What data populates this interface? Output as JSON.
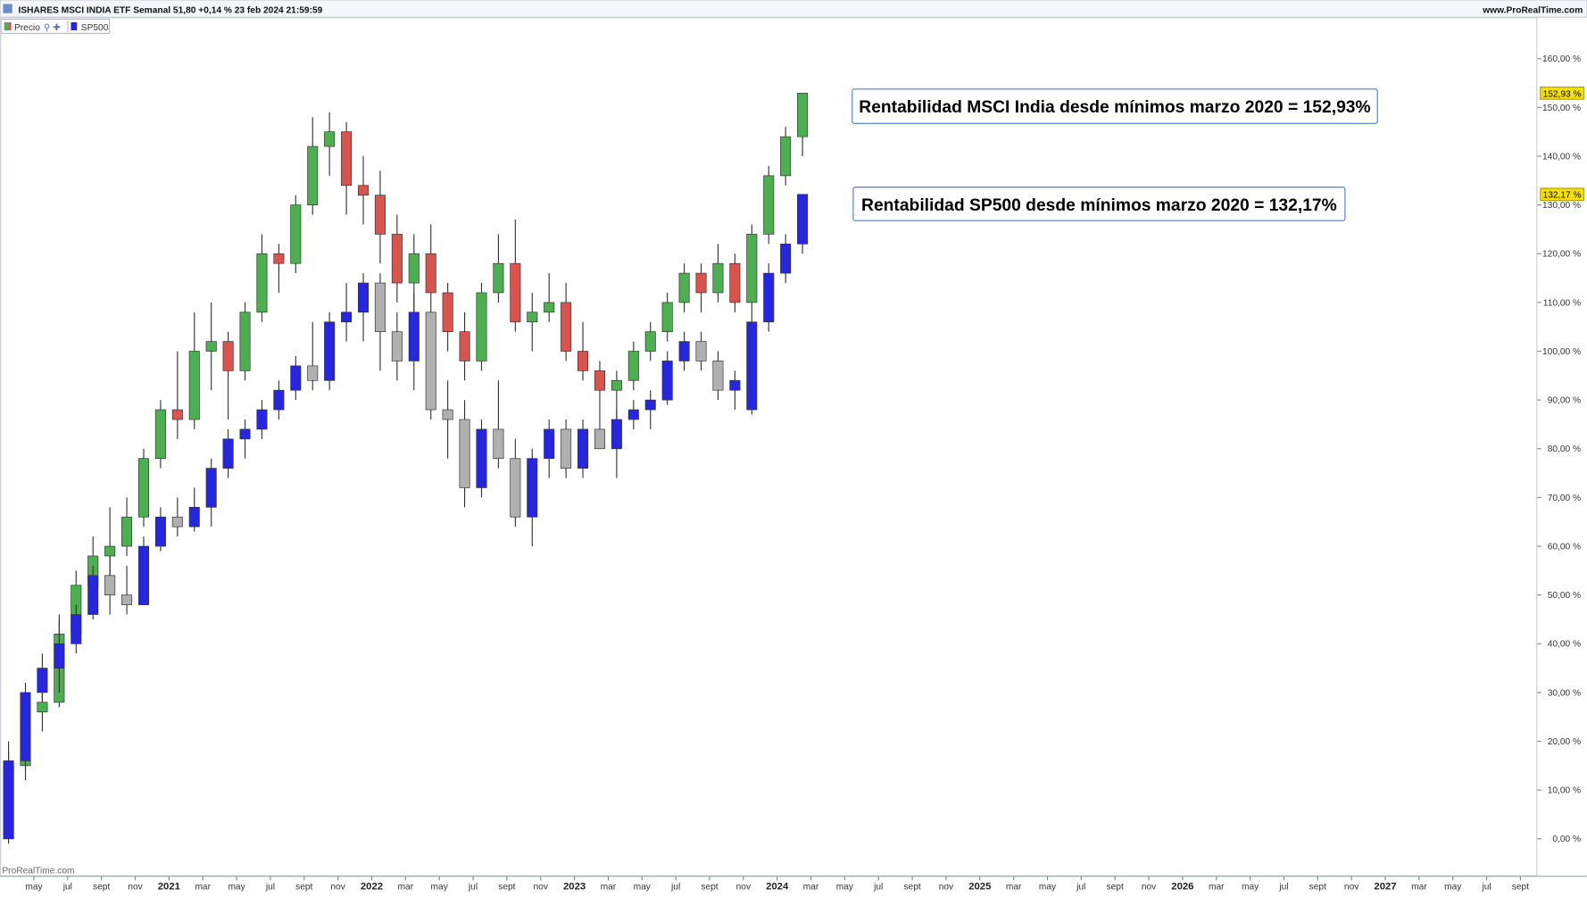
{
  "header": {
    "title": "ISHARES MSCI INDIA ETF Semanal 51,80 +0,14 % 23 feb 2024 21:59:59",
    "site": "www.ProRealTime.com"
  },
  "chart_data": {
    "type": "candlestick",
    "x": [
      "2020-03",
      "2020-04",
      "2020-05",
      "2020-06",
      "2020-07",
      "2020-08",
      "2020-09",
      "2020-10",
      "2020-11",
      "2020-12",
      "2021-01",
      "2021-02",
      "2021-03",
      "2021-04",
      "2021-05",
      "2021-06",
      "2021-07",
      "2021-08",
      "2021-09",
      "2021-10",
      "2021-11",
      "2021-12",
      "2022-01",
      "2022-02",
      "2022-03",
      "2022-04",
      "2022-05",
      "2022-06",
      "2022-07",
      "2022-08",
      "2022-09",
      "2022-10",
      "2022-11",
      "2022-12",
      "2023-01",
      "2023-02",
      "2023-03",
      "2023-04",
      "2023-05",
      "2023-06",
      "2023-07",
      "2023-08",
      "2023-09",
      "2023-10",
      "2023-11",
      "2023-12",
      "2024-01",
      "2024-02"
    ],
    "series": [
      {
        "name": "Precio",
        "up_color": "#4caf50",
        "down_color": "#d9534f",
        "last_label": "152,93 %",
        "open": [
          0,
          15,
          26,
          28,
          42,
          52,
          58,
          60,
          66,
          78,
          88,
          86,
          100,
          102,
          96,
          108,
          120,
          118,
          130,
          142,
          145,
          134,
          132,
          124,
          114,
          120,
          112,
          104,
          98,
          112,
          118,
          106,
          108,
          110,
          100,
          96,
          92,
          94,
          100,
          104,
          110,
          116,
          112,
          118,
          110,
          124,
          136,
          144
        ],
        "high": [
          18,
          30,
          30,
          45,
          55,
          62,
          68,
          70,
          80,
          90,
          100,
          108,
          110,
          104,
          110,
          124,
          122,
          132,
          148,
          149,
          147,
          140,
          137,
          128,
          124,
          126,
          114,
          108,
          114,
          124,
          127,
          112,
          116,
          114,
          106,
          98,
          96,
          102,
          106,
          112,
          118,
          118,
          122,
          120,
          126,
          138,
          146,
          153
        ],
        "low": [
          0,
          12,
          22,
          27,
          40,
          48,
          52,
          58,
          64,
          76,
          82,
          84,
          92,
          86,
          94,
          106,
          112,
          116,
          128,
          136,
          128,
          126,
          118,
          110,
          108,
          110,
          100,
          94,
          96,
          110,
          104,
          100,
          106,
          98,
          94,
          88,
          86,
          92,
          98,
          102,
          108,
          108,
          110,
          108,
          108,
          122,
          134,
          140
        ],
        "close": [
          15,
          26,
          28,
          42,
          52,
          58,
          60,
          66,
          78,
          88,
          86,
          100,
          102,
          96,
          108,
          120,
          118,
          130,
          142,
          145,
          134,
          132,
          124,
          114,
          120,
          112,
          104,
          98,
          112,
          118,
          106,
          108,
          110,
          100,
          96,
          92,
          94,
          100,
          104,
          110,
          116,
          112,
          118,
          110,
          124,
          136,
          144,
          152.93
        ]
      },
      {
        "name": "SP500",
        "up_color": "#2626e0",
        "down_color": "#b0b0b0",
        "last_label": "132,17 %",
        "open": [
          0,
          16,
          30,
          35,
          40,
          46,
          54,
          50,
          48,
          60,
          66,
          64,
          68,
          76,
          82,
          84,
          88,
          92,
          97,
          94,
          106,
          108,
          114,
          104,
          98,
          108,
          88,
          86,
          72,
          84,
          78,
          66,
          78,
          84,
          76,
          84,
          80,
          86,
          88,
          90,
          98,
          102,
          98,
          92,
          88,
          106,
          116,
          122
        ],
        "high": [
          20,
          32,
          38,
          46,
          48,
          56,
          58,
          56,
          62,
          68,
          70,
          72,
          78,
          84,
          86,
          90,
          94,
          99,
          106,
          108,
          114,
          116,
          116,
          108,
          112,
          110,
          94,
          90,
          86,
          94,
          82,
          80,
          86,
          86,
          86,
          88,
          88,
          90,
          92,
          100,
          104,
          104,
          100,
          96,
          108,
          118,
          124,
          132.17
        ],
        "low": [
          -1,
          14,
          28,
          30,
          38,
          45,
          46,
          46,
          48,
          59,
          62,
          63,
          64,
          74,
          78,
          82,
          86,
          90,
          92,
          92,
          102,
          102,
          96,
          94,
          92,
          86,
          78,
          68,
          70,
          76,
          64,
          60,
          74,
          74,
          74,
          80,
          74,
          84,
          84,
          89,
          96,
          96,
          90,
          88,
          87,
          104,
          114,
          120
        ],
        "close": [
          16,
          30,
          35,
          40,
          46,
          54,
          50,
          48,
          60,
          66,
          64,
          68,
          76,
          82,
          84,
          88,
          92,
          97,
          94,
          106,
          108,
          114,
          104,
          98,
          108,
          88,
          86,
          72,
          84,
          78,
          66,
          78,
          84,
          76,
          84,
          80,
          86,
          88,
          90,
          98,
          102,
          98,
          92,
          94,
          106,
          116,
          122,
          132.17
        ]
      }
    ],
    "xlim": [
      "2020-03",
      "2027-10"
    ],
    "xticks": [
      {
        "value": "2020-05",
        "label": "may"
      },
      {
        "value": "2020-07",
        "label": "jul"
      },
      {
        "value": "2020-09",
        "label": "sept"
      },
      {
        "value": "2020-11",
        "label": "nov"
      },
      {
        "value": "2021-01",
        "label": "2021"
      },
      {
        "value": "2021-03",
        "label": "mar"
      },
      {
        "value": "2021-05",
        "label": "may"
      },
      {
        "value": "2021-07",
        "label": "jul"
      },
      {
        "value": "2021-09",
        "label": "sept"
      },
      {
        "value": "2021-11",
        "label": "nov"
      },
      {
        "value": "2022-01",
        "label": "2022"
      },
      {
        "value": "2022-03",
        "label": "mar"
      },
      {
        "value": "2022-05",
        "label": "may"
      },
      {
        "value": "2022-07",
        "label": "jul"
      },
      {
        "value": "2022-09",
        "label": "sept"
      },
      {
        "value": "2022-11",
        "label": "nov"
      },
      {
        "value": "2023-01",
        "label": "2023"
      },
      {
        "value": "2023-03",
        "label": "mar"
      },
      {
        "value": "2023-05",
        "label": "may"
      },
      {
        "value": "2023-07",
        "label": "jul"
      },
      {
        "value": "2023-09",
        "label": "sept"
      },
      {
        "value": "2023-11",
        "label": "nov"
      },
      {
        "value": "2024-01",
        "label": "2024"
      },
      {
        "value": "2024-03",
        "label": "mar"
      },
      {
        "value": "2024-05",
        "label": "may"
      },
      {
        "value": "2024-07",
        "label": "jul"
      },
      {
        "value": "2024-09",
        "label": "sept"
      },
      {
        "value": "2024-11",
        "label": "nov"
      },
      {
        "value": "2025-01",
        "label": "2025"
      },
      {
        "value": "2025-03",
        "label": "mar"
      },
      {
        "value": "2025-05",
        "label": "may"
      },
      {
        "value": "2025-07",
        "label": "jul"
      },
      {
        "value": "2025-09",
        "label": "sept"
      },
      {
        "value": "2025-11",
        "label": "nov"
      },
      {
        "value": "2026-01",
        "label": "2026"
      },
      {
        "value": "2026-03",
        "label": "mar"
      },
      {
        "value": "2026-05",
        "label": "may"
      },
      {
        "value": "2026-07",
        "label": "jul"
      },
      {
        "value": "2026-09",
        "label": "sept"
      },
      {
        "value": "2026-11",
        "label": "nov"
      },
      {
        "value": "2027-01",
        "label": "2027"
      },
      {
        "value": "2027-03",
        "label": "mar"
      },
      {
        "value": "2027-05",
        "label": "may"
      },
      {
        "value": "2027-07",
        "label": "jul"
      },
      {
        "value": "2027-09",
        "label": "sept"
      }
    ],
    "ylim": [
      -7.7,
      168.3
    ],
    "yticks": [
      {
        "value": 0,
        "label": "0,00 %"
      },
      {
        "value": 10,
        "label": "10,00 %"
      },
      {
        "value": 20,
        "label": "20,00 %"
      },
      {
        "value": 30,
        "label": "30,00 %"
      },
      {
        "value": 40,
        "label": "40,00 %"
      },
      {
        "value": 50,
        "label": "50,00 %"
      },
      {
        "value": 60,
        "label": "60,00 %"
      },
      {
        "value": 70,
        "label": "70,00 %"
      },
      {
        "value": 80,
        "label": "80,00 %"
      },
      {
        "value": 90,
        "label": "90,00 %"
      },
      {
        "value": 100,
        "label": "100,00 %"
      },
      {
        "value": 110,
        "label": "110,00 %"
      },
      {
        "value": 120,
        "label": "120,00 %"
      },
      {
        "value": 130,
        "label": "130,00 %"
      },
      {
        "value": 140,
        "label": "140,00 %"
      },
      {
        "value": 150,
        "label": "150,00 %"
      },
      {
        "value": 160,
        "label": "160,00 %"
      }
    ],
    "annotations": [
      "Rentabilidad MSCI India desde mínimos marzo 2020 = 152,93%",
      "Rentabilidad SP500 desde mínimos marzo 2020 = 132,17%"
    ],
    "watermark": "ProRealTime.com"
  }
}
